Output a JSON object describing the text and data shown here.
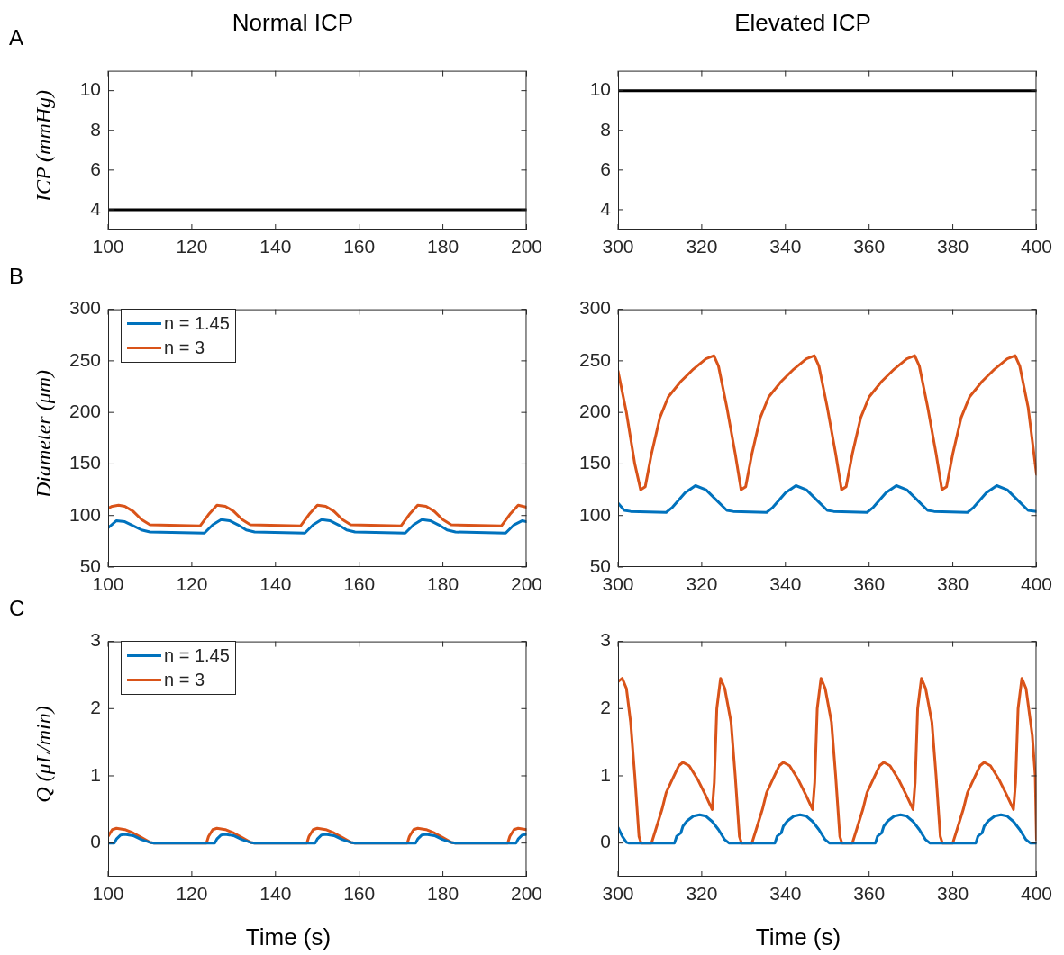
{
  "chart_data": [
    {
      "type": "line",
      "title": "Normal ICP",
      "ylabel": "ICP (mmHg)",
      "annotations": [
        "A"
      ],
      "xlim": [
        100,
        200
      ],
      "xticks": [
        100,
        120,
        140,
        160,
        180,
        200
      ],
      "ylim": [
        3,
        11
      ],
      "yticks": [
        4,
        6,
        8,
        10
      ],
      "series": [
        {
          "color": "#000000",
          "x": [
            100,
            200
          ],
          "values": [
            4,
            4
          ]
        }
      ]
    },
    {
      "type": "line",
      "title": "Elevated ICP",
      "xlim": [
        300,
        400
      ],
      "xticks": [
        300,
        320,
        340,
        360,
        380,
        400
      ],
      "ylim": [
        3,
        11
      ],
      "yticks": [
        4,
        6,
        8,
        10
      ],
      "series": [
        {
          "color": "#000000",
          "x": [
            300,
            400
          ],
          "values": [
            10,
            10
          ]
        }
      ]
    },
    {
      "type": "line",
      "ylabel": "Diameter (μm)",
      "annotations": [
        "B"
      ],
      "legend": "top left",
      "xlim": [
        100,
        200
      ],
      "xticks": [
        100,
        120,
        140,
        160,
        180,
        200
      ],
      "ylim": [
        50,
        300
      ],
      "yticks": [
        50,
        100,
        150,
        200,
        250,
        300
      ],
      "series": [
        {
          "name": "n = 1.45",
          "color": "#0072bd",
          "x": [
            100,
            102,
            104,
            106,
            108,
            110,
            123,
            125,
            127,
            129,
            131,
            133,
            135,
            147,
            149,
            151,
            153,
            155,
            157,
            159,
            171,
            173,
            175,
            177,
            179,
            181,
            183,
            195,
            197,
            199,
            200
          ],
          "values": [
            88,
            95,
            94,
            90,
            86,
            84,
            83,
            91,
            96,
            95,
            91,
            86,
            84,
            83,
            91,
            96,
            95,
            91,
            86,
            84,
            83,
            91,
            96,
            95,
            91,
            86,
            84,
            83,
            91,
            95,
            94
          ]
        },
        {
          "name": "n = 3",
          "color": "#d95319",
          "x": [
            100,
            101,
            102.5,
            104,
            106,
            108,
            110,
            122,
            124,
            126,
            128,
            130,
            132,
            134,
            146,
            148,
            150,
            152,
            154,
            156,
            158,
            170,
            172,
            174,
            176,
            178,
            180,
            182,
            194,
            196,
            198,
            200
          ],
          "values": [
            107,
            109,
            110,
            109,
            104,
            96,
            91,
            90,
            101,
            110,
            109,
            104,
            96,
            91,
            90,
            101,
            110,
            109,
            104,
            96,
            91,
            90,
            101,
            110,
            109,
            104,
            96,
            91,
            90,
            101,
            110,
            108
          ]
        }
      ]
    },
    {
      "type": "line",
      "xlim": [
        300,
        400
      ],
      "xticks": [
        300,
        320,
        340,
        360,
        380,
        400
      ],
      "ylim": [
        50,
        300
      ],
      "yticks": [
        50,
        100,
        150,
        200,
        250,
        300
      ],
      "series": [
        {
          "color": "#0072bd",
          "x": [
            300,
            301.5,
            303,
            311.5,
            313,
            316,
            318.5,
            321,
            324,
            326,
            327.5,
            335.5,
            337,
            340,
            342.5,
            345,
            348,
            350,
            351.5,
            359.5,
            361,
            364,
            366.5,
            369,
            372,
            374,
            375.5,
            383.5,
            385,
            388,
            390.5,
            393,
            396,
            398,
            400
          ],
          "values": [
            112,
            105,
            104,
            103,
            108,
            122,
            129,
            125,
            113,
            105,
            104,
            103,
            108,
            122,
            129,
            125,
            113,
            105,
            104,
            103,
            108,
            122,
            129,
            125,
            113,
            105,
            104,
            103,
            108,
            122,
            129,
            125,
            113,
            105,
            104
          ]
        },
        {
          "color": "#d95319",
          "x": [
            300,
            302,
            304,
            305.4,
            306.5,
            308,
            310,
            312,
            315,
            318,
            321,
            322.9,
            324,
            326,
            328,
            329.4,
            330.5,
            332,
            334,
            336,
            339,
            342,
            345,
            346.9,
            348,
            350,
            352,
            353.4,
            354.5,
            356,
            358,
            360,
            363,
            366,
            369,
            370.9,
            372,
            374,
            376,
            377.4,
            378.5,
            380,
            382,
            384,
            387,
            390,
            393,
            394.9,
            396,
            398,
            400
          ],
          "values": [
            240,
            200,
            150,
            125,
            128,
            160,
            195,
            215,
            230,
            242,
            252,
            255,
            245,
            205,
            160,
            125,
            128,
            160,
            195,
            215,
            230,
            242,
            252,
            255,
            245,
            205,
            160,
            125,
            128,
            160,
            195,
            215,
            230,
            242,
            252,
            255,
            245,
            205,
            160,
            125,
            128,
            160,
            195,
            215,
            230,
            242,
            252,
            255,
            245,
            205,
            140
          ]
        }
      ]
    },
    {
      "type": "line",
      "ylabel": "Q (μL/min)",
      "xlabel": "Time (s)",
      "annotations": [
        "C"
      ],
      "legend": "top left",
      "xlim": [
        100,
        200
      ],
      "xticks": [
        100,
        120,
        140,
        160,
        180,
        200
      ],
      "ylim": [
        -0.5,
        3
      ],
      "yticks": [
        0,
        1,
        2,
        3
      ],
      "series": [
        {
          "name": "n = 1.45",
          "color": "#0072bd",
          "x": [
            100,
            101.5,
            102,
            103,
            104,
            106,
            108,
            110,
            111,
            125.5,
            126,
            127,
            128,
            130,
            132,
            134,
            135,
            149.5,
            150,
            151,
            152,
            154,
            156,
            158,
            159,
            173.5,
            174,
            175,
            176,
            178,
            180,
            182,
            183,
            197.5,
            198,
            199,
            200
          ],
          "values": [
            0,
            0,
            0.06,
            0.12,
            0.13,
            0.11,
            0.05,
            0.01,
            0,
            0,
            0.06,
            0.12,
            0.13,
            0.11,
            0.05,
            0.01,
            0,
            0,
            0.06,
            0.12,
            0.13,
            0.11,
            0.05,
            0.01,
            0,
            0,
            0.06,
            0.12,
            0.13,
            0.11,
            0.05,
            0.01,
            0,
            0,
            0.06,
            0.12,
            0.13
          ]
        },
        {
          "name": "n = 3",
          "color": "#d95319",
          "x": [
            100,
            101,
            102,
            104,
            106,
            108,
            110,
            111,
            123.5,
            124,
            124.5,
            125,
            126,
            128,
            130,
            132,
            134,
            135,
            147.5,
            148,
            148.5,
            149,
            150,
            152,
            154,
            156,
            158,
            159,
            171.5,
            172,
            172.5,
            173,
            174,
            176,
            178,
            180,
            182,
            183,
            195.5,
            196,
            196.5,
            197,
            198,
            200
          ],
          "values": [
            0.1,
            0.2,
            0.22,
            0.2,
            0.15,
            0.08,
            0.01,
            0,
            0,
            0.1,
            0.15,
            0.2,
            0.22,
            0.2,
            0.15,
            0.08,
            0.01,
            0,
            0,
            0.1,
            0.15,
            0.2,
            0.22,
            0.2,
            0.15,
            0.08,
            0.01,
            0,
            0,
            0.1,
            0.15,
            0.2,
            0.22,
            0.2,
            0.15,
            0.08,
            0.01,
            0,
            0,
            0.1,
            0.15,
            0.2,
            0.22,
            0.2
          ]
        }
      ]
    },
    {
      "type": "line",
      "xlabel": "Time (s)",
      "xlim": [
        300,
        400
      ],
      "xticks": [
        300,
        320,
        340,
        360,
        380,
        400
      ],
      "ylim": [
        -0.5,
        3
      ],
      "yticks": [
        0,
        1,
        2,
        3
      ],
      "series": [
        {
          "color": "#0072bd",
          "x": [
            300,
            301,
            302,
            302.5,
            313.5,
            314,
            315,
            315.5,
            316.5,
            318,
            319.5,
            321,
            322.5,
            324,
            325.5,
            326.5,
            337.5,
            338,
            339,
            339.5,
            340.5,
            342,
            343.5,
            345,
            346.5,
            348,
            349.5,
            350.5,
            361.5,
            362,
            363,
            363.5,
            364.5,
            366,
            367.5,
            369,
            370.5,
            372,
            373.5,
            374.5,
            385.5,
            386,
            387,
            387.5,
            388.5,
            390,
            391.5,
            393,
            394.5,
            396,
            397.5,
            398.5,
            400
          ],
          "values": [
            0.23,
            0.1,
            0.01,
            0,
            0,
            0.1,
            0.15,
            0.25,
            0.33,
            0.4,
            0.42,
            0.4,
            0.32,
            0.2,
            0.05,
            0,
            0,
            0.1,
            0.15,
            0.25,
            0.33,
            0.4,
            0.42,
            0.4,
            0.32,
            0.2,
            0.05,
            0,
            0,
            0.1,
            0.15,
            0.25,
            0.33,
            0.4,
            0.42,
            0.4,
            0.32,
            0.2,
            0.05,
            0,
            0,
            0.1,
            0.15,
            0.25,
            0.33,
            0.4,
            0.42,
            0.4,
            0.32,
            0.2,
            0.05,
            0,
            0
          ]
        },
        {
          "color": "#d95319",
          "x": [
            300,
            301,
            302,
            303,
            304,
            305,
            305.5,
            308,
            309,
            310.5,
            311.5,
            313,
            314.5,
            315.5,
            317,
            319,
            321,
            322.5,
            323,
            323.6,
            324.5,
            325.5,
            327,
            328,
            329,
            329.5,
            332,
            333,
            334.5,
            335.5,
            337,
            338.5,
            339.5,
            341,
            343,
            345,
            346.5,
            347,
            347.6,
            348.5,
            349.5,
            351,
            352,
            353,
            353.5,
            356,
            357,
            358.5,
            359.5,
            361,
            362.5,
            363.5,
            365,
            367,
            369,
            370.5,
            371,
            371.6,
            372.5,
            373.5,
            375,
            376,
            377,
            377.5,
            380,
            381,
            382.5,
            383.5,
            385,
            386.5,
            387.5,
            389,
            391,
            393,
            394.5,
            395,
            395.6,
            396.5,
            397.5,
            399,
            399.7,
            400
          ],
          "values": [
            2.4,
            2.45,
            2.3,
            1.8,
            1,
            0.1,
            0,
            0,
            0.2,
            0.5,
            0.75,
            0.95,
            1.15,
            1.2,
            1.15,
            0.95,
            0.7,
            0.5,
            0.9,
            2,
            2.45,
            2.3,
            1.8,
            1,
            0.1,
            0,
            0,
            0.2,
            0.5,
            0.75,
            0.95,
            1.15,
            1.2,
            1.15,
            0.95,
            0.7,
            0.5,
            0.9,
            2,
            2.45,
            2.3,
            1.8,
            1,
            0.1,
            0,
            0,
            0.2,
            0.5,
            0.75,
            0.95,
            1.15,
            1.2,
            1.15,
            0.95,
            0.7,
            0.5,
            0.9,
            2,
            2.45,
            2.3,
            1.8,
            1,
            0.1,
            0,
            0,
            0.2,
            0.5,
            0.75,
            0.95,
            1.15,
            1.2,
            1.15,
            0.95,
            0.7,
            0.5,
            0.9,
            2,
            2.45,
            2.3,
            1.6,
            1,
            0.05
          ]
        }
      ]
    }
  ]
}
